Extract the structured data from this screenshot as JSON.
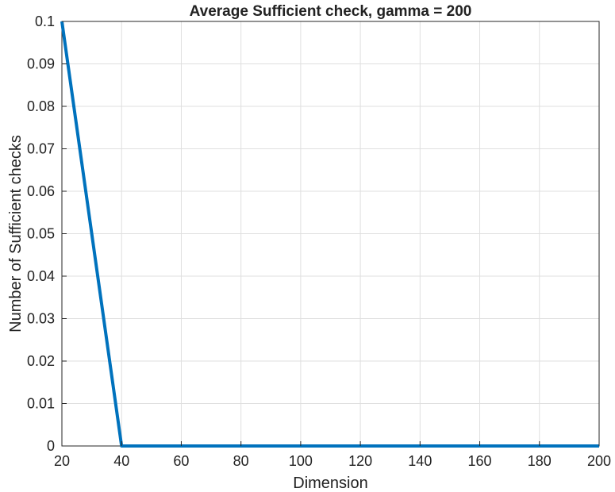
{
  "chart_data": {
    "type": "line",
    "title": "Average Sufficient check, gamma = 200",
    "xlabel": "Dimension",
    "ylabel": "Number of Sufficient checks",
    "xlim": [
      20,
      200
    ],
    "ylim": [
      0,
      0.1
    ],
    "xticks": [
      "20",
      "40",
      "60",
      "80",
      "100",
      "120",
      "140",
      "160",
      "180",
      "200"
    ],
    "yticks": [
      "0",
      "0.01",
      "0.02",
      "0.03",
      "0.04",
      "0.05",
      "0.06",
      "0.07",
      "0.08",
      "0.09",
      "0.1"
    ],
    "grid": true,
    "series": [
      {
        "x": [
          20,
          40,
          60,
          80,
          100,
          120,
          140,
          160,
          180,
          200
        ],
        "y": [
          0.1,
          0,
          0,
          0,
          0,
          0,
          0,
          0,
          0,
          0
        ],
        "color": "#0072BD"
      }
    ]
  }
}
